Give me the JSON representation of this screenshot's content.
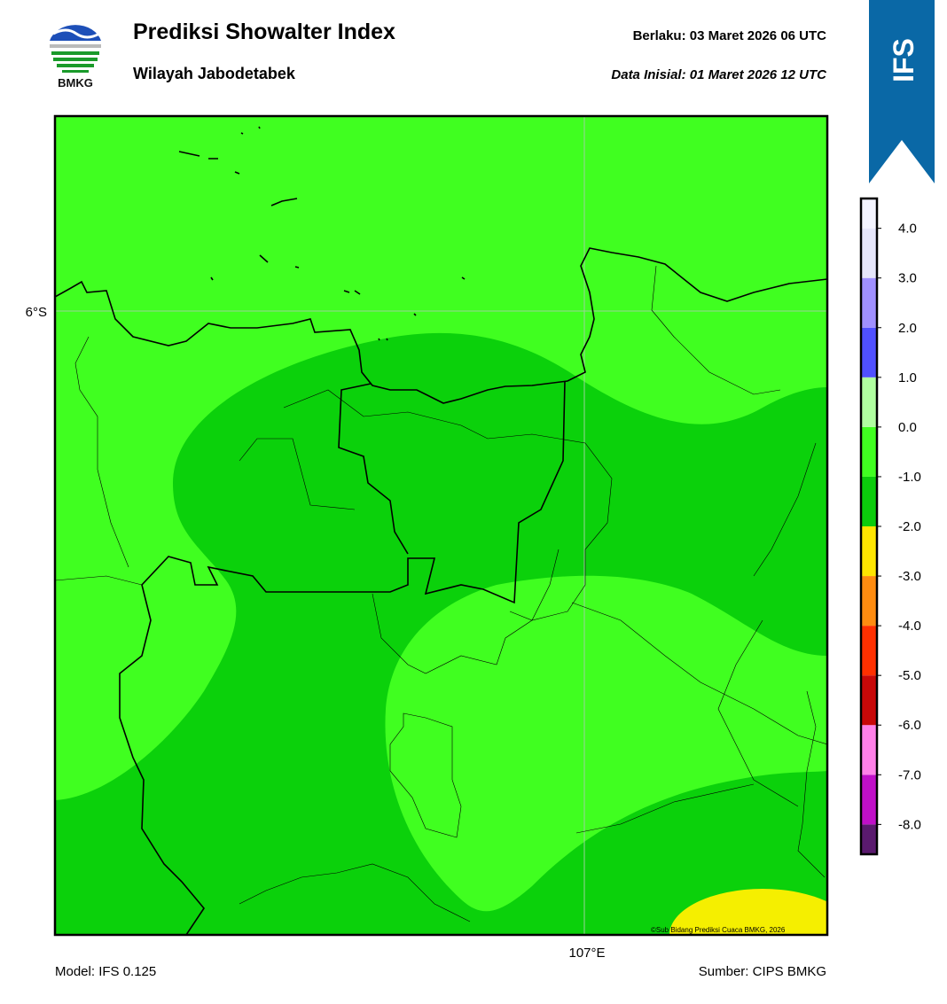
{
  "header": {
    "title": "Prediksi Showalter Index",
    "subtitle": "Wilayah Jabodetabek",
    "valid_label": "Berlaku:  03 Maret 2026 06 UTC",
    "init_label": "Data Inisial:  01 Maret 2026 12 UTC",
    "logo_text": "BMKG",
    "model_badge": "IFS"
  },
  "map": {
    "lat_label": "6°S",
    "lon_label": "107°E",
    "copyright": "©Sub Bidang Prediksi Cuaca BMKG, 2026"
  },
  "colorbar": {
    "lim": [
      -8.6,
      4.6
    ],
    "bounds": [
      -8.6,
      -8,
      -7,
      -6,
      -5,
      -4,
      -3,
      -2,
      -1,
      0,
      1,
      2,
      3,
      4,
      4.6
    ],
    "colors": [
      "#5a1a6e",
      "#c010c8",
      "#ff80e8",
      "#c80808",
      "#ff3000",
      "#ff8c10",
      "#ffe600",
      "#0bcc0b",
      "#40ff20",
      "#b0ffa0",
      "#5050ff",
      "#a090ff",
      "#e6e6fa",
      "#f4f4ff"
    ],
    "ticks": [
      {
        "value": 4,
        "label": "4.0"
      },
      {
        "value": 3,
        "label": "3.0"
      },
      {
        "value": 2,
        "label": "2.0"
      },
      {
        "value": 1,
        "label": "1.0"
      },
      {
        "value": 0,
        "label": "0.0"
      },
      {
        "value": -1,
        "label": "-1.0"
      },
      {
        "value": -2,
        "label": "-2.0"
      },
      {
        "value": -3,
        "label": "-3.0"
      },
      {
        "value": -4,
        "label": "-4.0"
      },
      {
        "value": -5,
        "label": "-5.0"
      },
      {
        "value": -6,
        "label": "-6.0"
      },
      {
        "value": -7,
        "label": "-7.0"
      },
      {
        "value": -8,
        "label": "-8.0"
      }
    ]
  },
  "footer": {
    "model": "Model: IFS 0.125",
    "source": "Sumber: CIPS BMKG"
  }
}
